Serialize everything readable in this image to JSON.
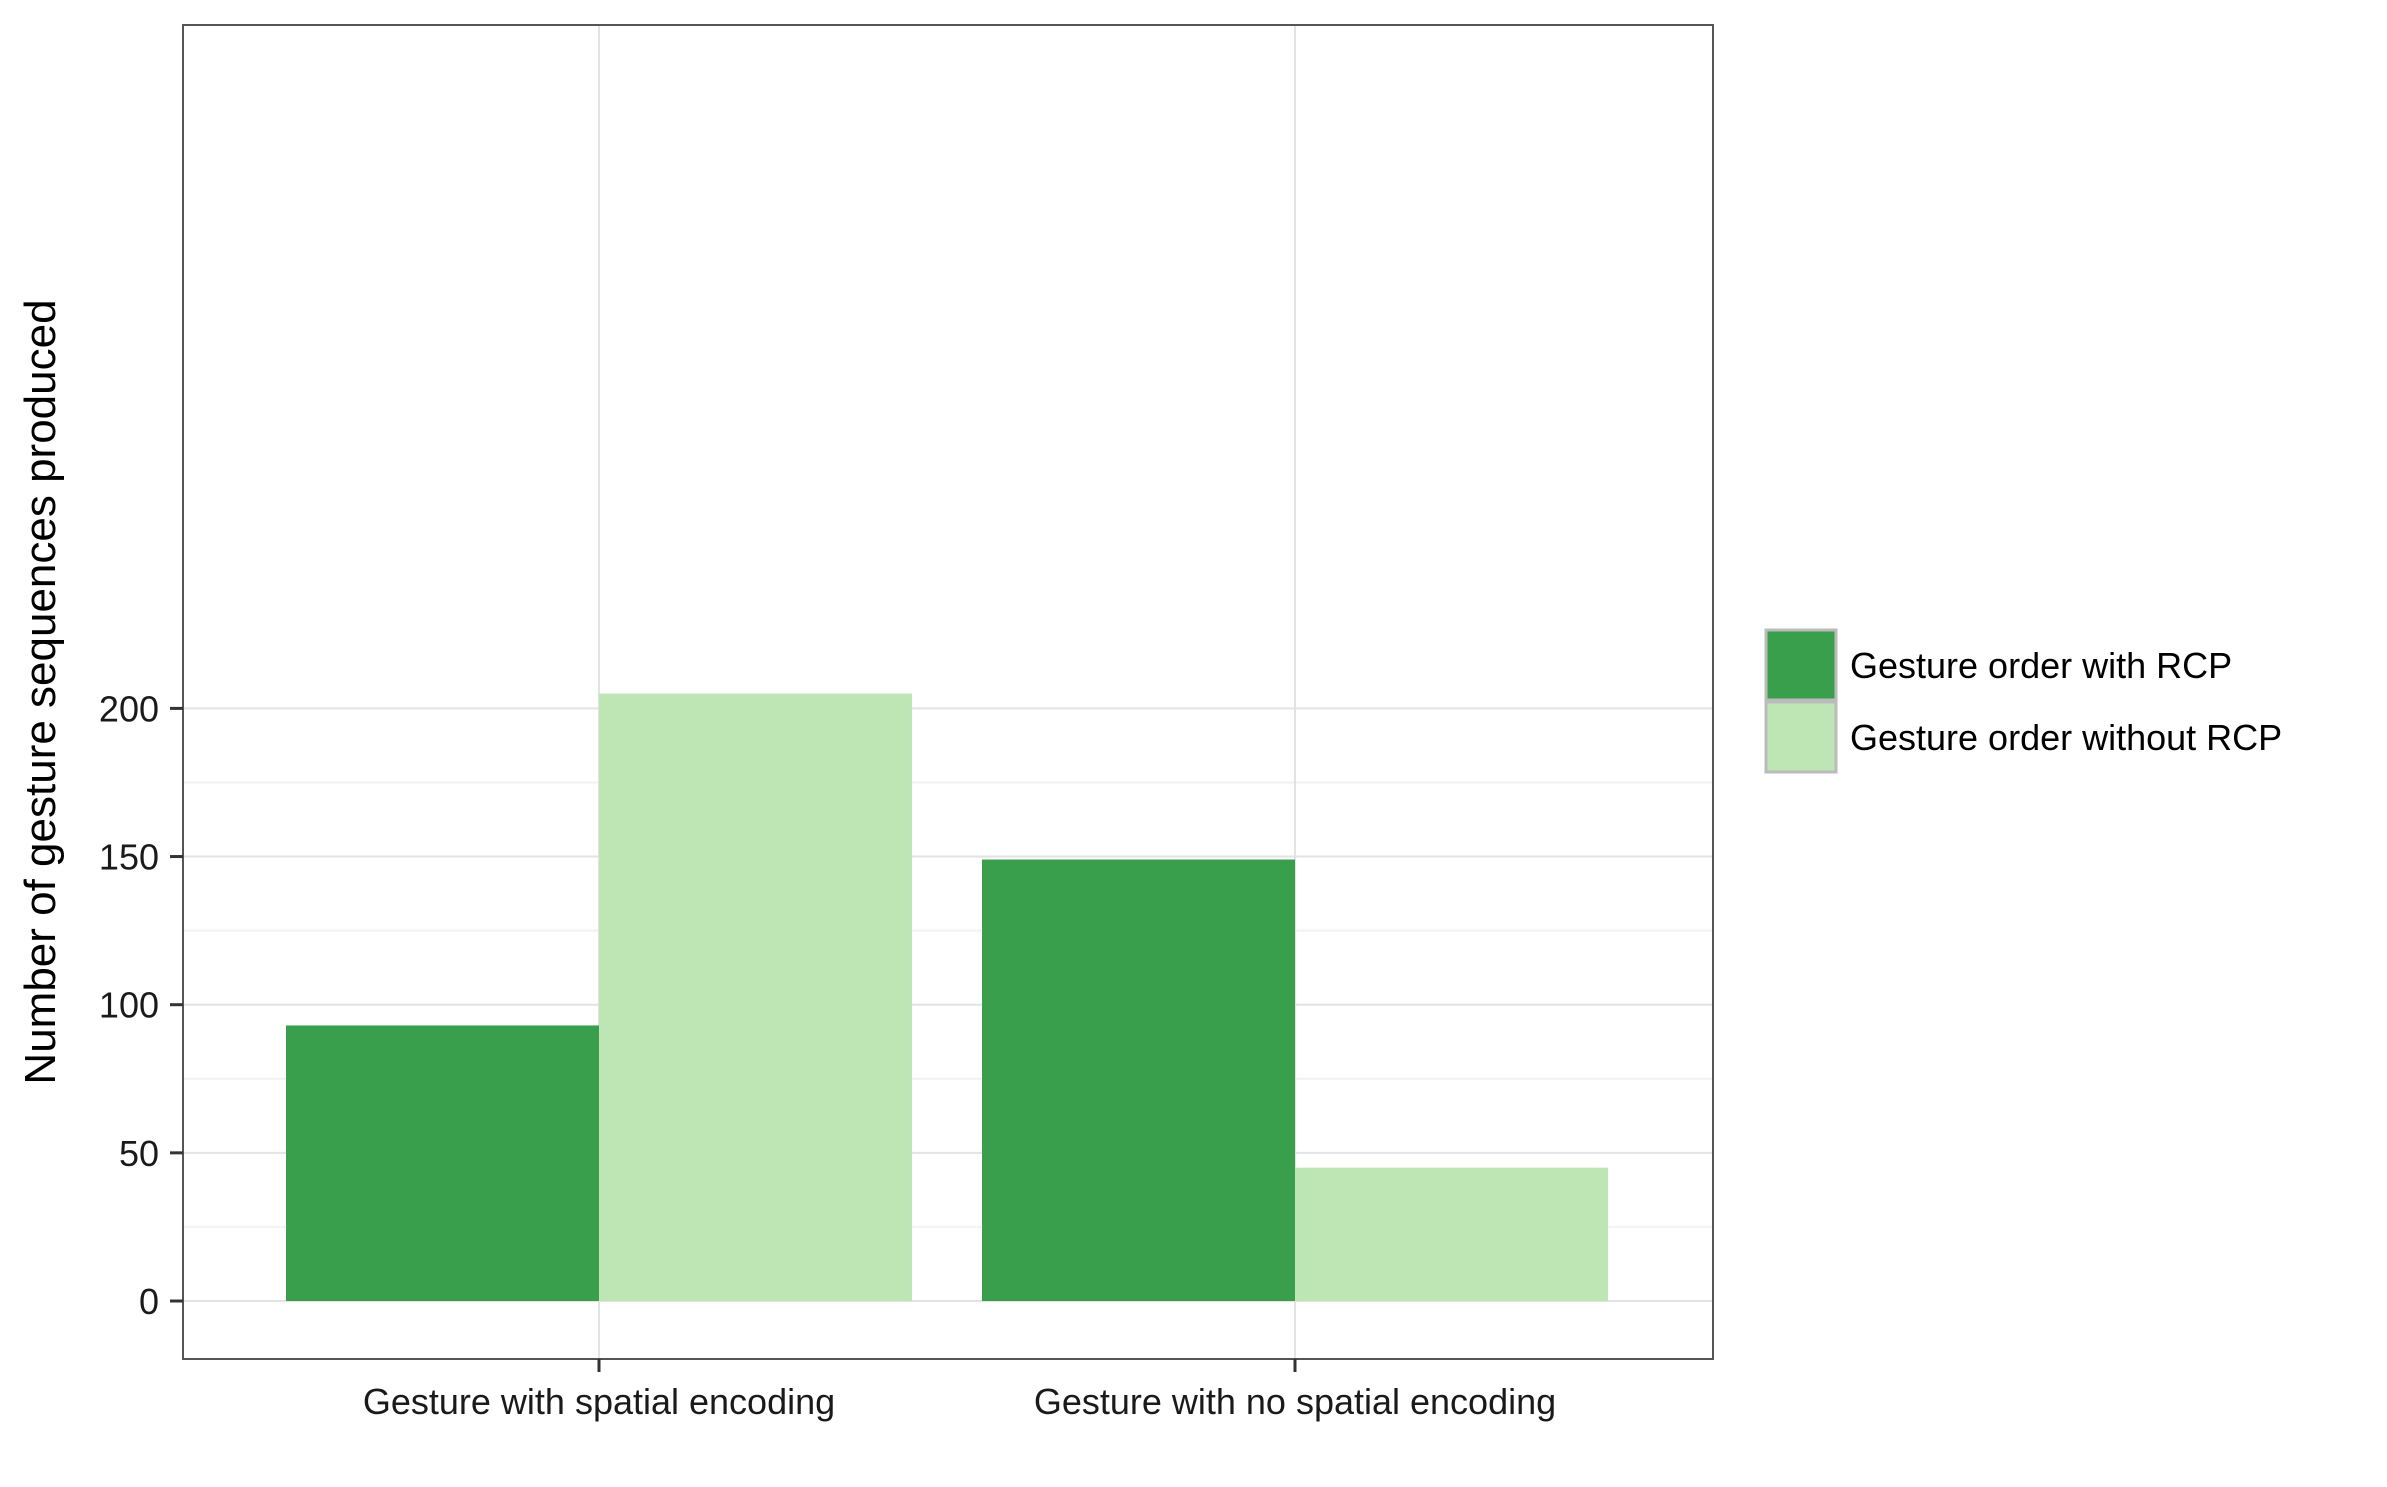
{
  "chart_data": {
    "type": "bar",
    "categories": [
      "Gesture with spatial encoding",
      "Gesture with no spatial encoding"
    ],
    "series": [
      {
        "name": "Gesture order with RCP",
        "values": [
          93,
          149
        ],
        "color": "#3a9f4d"
      },
      {
        "name": "Gesture order without RCP",
        "values": [
          205,
          45
        ],
        "color": "#bee6b4"
      }
    ],
    "title": "",
    "xlabel": "",
    "ylabel": "Number of gesture sequences produced",
    "ylim": [
      0,
      215
    ],
    "yticks": [
      0,
      50,
      100,
      150,
      200
    ],
    "grid": true,
    "legend_position": "right"
  }
}
